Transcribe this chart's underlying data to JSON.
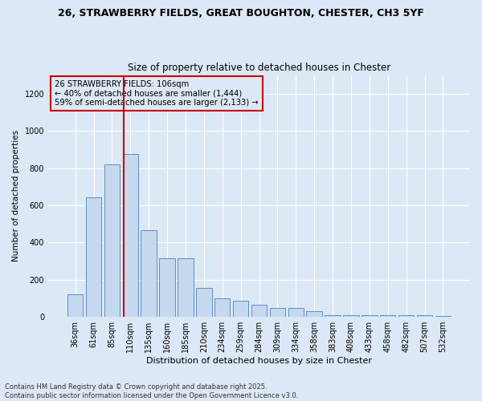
{
  "title1": "26, STRAWBERRY FIELDS, GREAT BOUGHTON, CHESTER, CH3 5YF",
  "title2": "Size of property relative to detached houses in Chester",
  "xlabel": "Distribution of detached houses by size in Chester",
  "ylabel": "Number of detached properties",
  "categories": [
    "36sqm",
    "61sqm",
    "85sqm",
    "110sqm",
    "135sqm",
    "160sqm",
    "185sqm",
    "210sqm",
    "234sqm",
    "259sqm",
    "284sqm",
    "309sqm",
    "334sqm",
    "358sqm",
    "383sqm",
    "408sqm",
    "433sqm",
    "458sqm",
    "482sqm",
    "507sqm",
    "532sqm"
  ],
  "values": [
    120,
    645,
    820,
    875,
    465,
    315,
    315,
    155,
    100,
    85,
    65,
    50,
    50,
    30,
    10,
    10,
    10,
    10,
    10,
    10,
    5
  ],
  "bar_color": "#c5d8ed",
  "bar_edge_color": "#5b8fc9",
  "vline_color": "#cc0000",
  "box_edge_color": "#cc0000",
  "annotation_title": "26 STRAWBERRY FIELDS: 106sqm",
  "annotation_line1": "← 40% of detached houses are smaller (1,444)",
  "annotation_line2": "59% of semi-detached houses are larger (2,133) →",
  "footnote1": "Contains HM Land Registry data © Crown copyright and database right 2025.",
  "footnote2": "Contains public sector information licensed under the Open Government Licence v3.0.",
  "background_color": "#dce8f5",
  "ylim": [
    0,
    1300
  ],
  "yticks": [
    0,
    200,
    400,
    600,
    800,
    1000,
    1200
  ],
  "vline_x": 2.62
}
